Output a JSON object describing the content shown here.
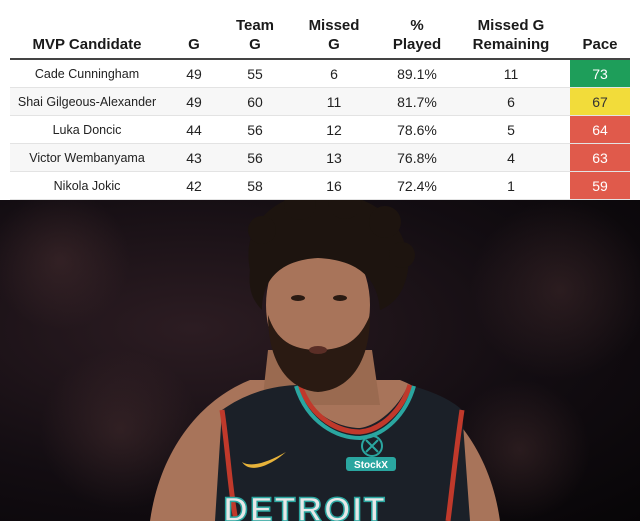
{
  "table": {
    "headers": [
      {
        "line1": "MVP Candidate",
        "line2": ""
      },
      {
        "line1": "G",
        "line2": ""
      },
      {
        "line1": "Team",
        "line2": "G"
      },
      {
        "line1": "Missed",
        "line2": "G"
      },
      {
        "line1": "%",
        "line2": "Played"
      },
      {
        "line1": "Missed G",
        "line2": "Remaining"
      },
      {
        "line1": "Pace",
        "line2": ""
      }
    ],
    "rows": [
      {
        "name": "Cade Cunningham",
        "g": "49",
        "team_g": "55",
        "missed_g": "6",
        "pct_played": "89.1%",
        "missed_remaining": "11",
        "pace": "73",
        "pace_color": "#1e9e5a"
      },
      {
        "name": "Shai Gilgeous-Alexander",
        "g": "49",
        "team_g": "60",
        "missed_g": "11",
        "pct_played": "81.7%",
        "missed_remaining": "6",
        "pace": "67",
        "pace_color": "#f2dc3a"
      },
      {
        "name": "Luka Doncic",
        "g": "44",
        "team_g": "56",
        "missed_g": "12",
        "pct_played": "78.6%",
        "missed_remaining": "5",
        "pace": "64",
        "pace_color": "#e05a4b"
      },
      {
        "name": "Victor Wembanyama",
        "g": "43",
        "team_g": "56",
        "missed_g": "13",
        "pct_played": "76.8%",
        "missed_remaining": "4",
        "pace": "63",
        "pace_color": "#e05a4b"
      },
      {
        "name": "Nikola Jokic",
        "g": "42",
        "team_g": "58",
        "missed_g": "16",
        "pct_played": "72.4%",
        "missed_remaining": "1",
        "pace": "59",
        "pace_color": "#e05a4b"
      }
    ]
  },
  "photo": {
    "jersey_text": "DETROIT",
    "sponsor_patch": "StockX",
    "colors": {
      "jersey": "#1b2028",
      "trim_red": "#c0392b",
      "trim_teal": "#2aa6a0",
      "skin": "#a8745a",
      "hair": "#1d140f"
    }
  }
}
